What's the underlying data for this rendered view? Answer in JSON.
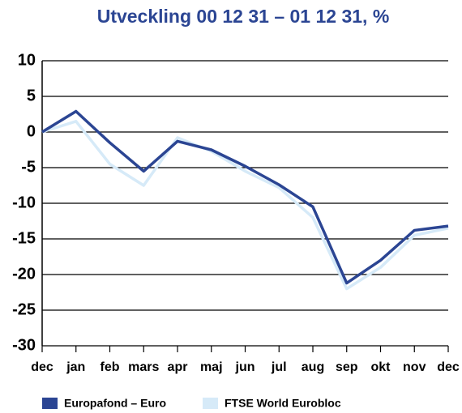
{
  "chart_data": {
    "type": "line",
    "title": "Utveckling  00 12 31 – 01 12 31, %",
    "categories": [
      "dec",
      "jan",
      "feb",
      "mars",
      "apr",
      "maj",
      "jun",
      "jul",
      "aug",
      "sep",
      "okt",
      "nov",
      "dec"
    ],
    "series": [
      {
        "name": "Europafond – Euro",
        "color": "#2b4593",
        "values": [
          0,
          2.9,
          -1.5,
          -5.5,
          -1.3,
          -2.5,
          -4.8,
          -7.4,
          -10.5,
          -21.2,
          -18,
          -13.8,
          -13.2
        ]
      },
      {
        "name": "FTSE World Eurobloc",
        "color": "#d6eaf8",
        "values": [
          0,
          1.5,
          -4.5,
          -7.5,
          -0.8,
          -2.7,
          -5.5,
          -7.8,
          -12,
          -22,
          -19,
          -14.5,
          -13.5
        ]
      }
    ],
    "ylim": [
      -30,
      10
    ],
    "yticks": [
      10,
      5,
      0,
      -5,
      -10,
      -15,
      -20,
      -25,
      -30
    ],
    "grid": true
  }
}
